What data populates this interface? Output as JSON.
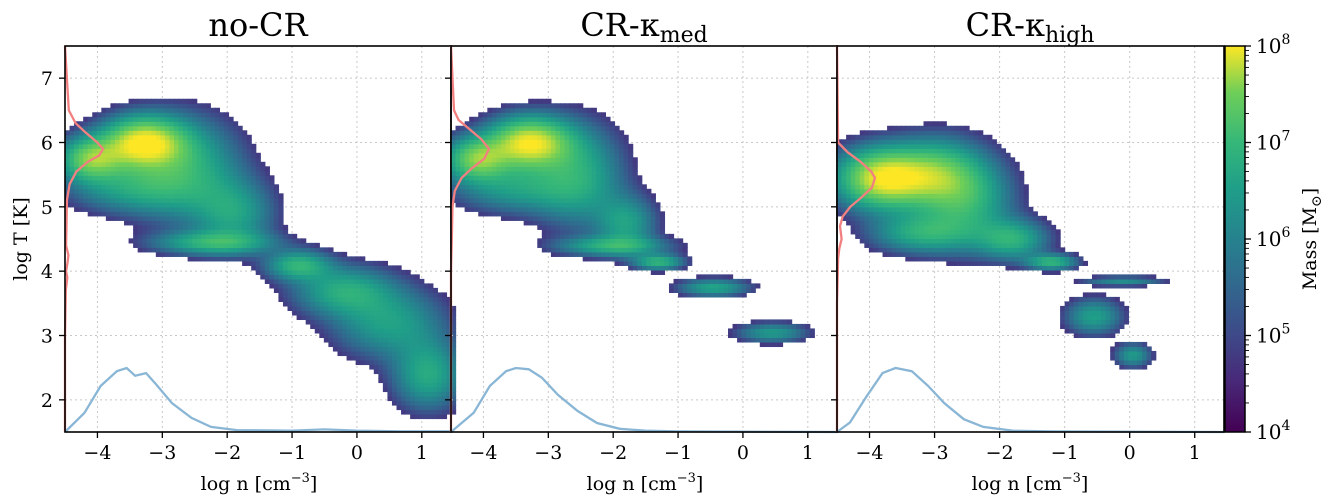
{
  "chart_data": {
    "type": "heatmap",
    "panels": [
      {
        "title": "no-CR",
        "title_sub": ""
      },
      {
        "title": "CR-κ",
        "title_sub": "med"
      },
      {
        "title": "CR-κ",
        "title_sub": "high"
      }
    ],
    "xlabel": "log n [cm",
    "xlabel_sup": "−3",
    "xlabel_end": "]",
    "ylabel": "log T [K]",
    "xlim": [
      -4.5,
      1.45
    ],
    "ylim": [
      1.5,
      7.5
    ],
    "x_ticks": [
      -4,
      -3,
      -2,
      -1,
      0,
      1
    ],
    "x_tick_labels": [
      "−4",
      "−3",
      "−2",
      "−1",
      "0",
      "1"
    ],
    "y_ticks": [
      2,
      3,
      4,
      5,
      6,
      7
    ],
    "y_tick_labels": [
      "2",
      "3",
      "4",
      "5",
      "6",
      "7"
    ],
    "grid": true,
    "colorbar": {
      "label": "Mass [M",
      "label_sub": "⊙",
      "label_end": "]",
      "scale": "log",
      "range": [
        10000,
        100000000
      ],
      "ticks": [
        {
          "base": "10",
          "exp": "4"
        },
        {
          "base": "10",
          "exp": "5"
        },
        {
          "base": "10",
          "exp": "6"
        },
        {
          "base": "10",
          "exp": "7"
        },
        {
          "base": "10",
          "exp": "8"
        }
      ],
      "colormap": "viridis"
    },
    "temperature_profile_color": "#f28080",
    "density_profile_color": "#8ab6d6",
    "temperature_profiles": [
      [
        [
          7.5,
          0
        ],
        [
          6.5,
          0.1
        ],
        [
          6.3,
          0.28
        ],
        [
          6.15,
          0.55
        ],
        [
          6.0,
          0.85
        ],
        [
          5.9,
          1.0
        ],
        [
          5.8,
          0.9
        ],
        [
          5.7,
          0.6
        ],
        [
          5.55,
          0.3
        ],
        [
          5.35,
          0.12
        ],
        [
          5.1,
          0.05
        ],
        [
          4.7,
          0.04
        ],
        [
          4.4,
          0.03
        ],
        [
          4.25,
          0.09
        ],
        [
          4.15,
          0.07
        ],
        [
          4.0,
          0.03
        ],
        [
          3.9,
          0.06
        ],
        [
          3.7,
          0.02
        ],
        [
          3.0,
          0
        ],
        [
          1.5,
          0
        ]
      ],
      [
        [
          7.5,
          0
        ],
        [
          6.5,
          0.08
        ],
        [
          6.35,
          0.2
        ],
        [
          6.2,
          0.5
        ],
        [
          6.05,
          0.8
        ],
        [
          5.9,
          1.0
        ],
        [
          5.75,
          0.88
        ],
        [
          5.6,
          0.55
        ],
        [
          5.45,
          0.28
        ],
        [
          5.25,
          0.1
        ],
        [
          5.0,
          0.04
        ],
        [
          4.5,
          0.02
        ],
        [
          4.0,
          0
        ],
        [
          1.5,
          0
        ]
      ],
      [
        [
          7.5,
          0
        ],
        [
          6.0,
          0.03
        ],
        [
          5.85,
          0.28
        ],
        [
          5.7,
          0.62
        ],
        [
          5.55,
          0.9
        ],
        [
          5.45,
          1.0
        ],
        [
          5.3,
          0.92
        ],
        [
          5.15,
          0.65
        ],
        [
          5.0,
          0.35
        ],
        [
          4.85,
          0.15
        ],
        [
          4.7,
          0.08
        ],
        [
          4.5,
          0.12
        ],
        [
          4.35,
          0.06
        ],
        [
          4.2,
          0.03
        ],
        [
          3.5,
          0
        ],
        [
          1.5,
          0
        ]
      ]
    ],
    "density_profiles": [
      [
        [
          -4.5,
          0
        ],
        [
          -4.2,
          0.3
        ],
        [
          -3.95,
          0.72
        ],
        [
          -3.7,
          0.95
        ],
        [
          -3.55,
          1.0
        ],
        [
          -3.42,
          0.88
        ],
        [
          -3.25,
          0.92
        ],
        [
          -3.1,
          0.75
        ],
        [
          -2.85,
          0.45
        ],
        [
          -2.55,
          0.22
        ],
        [
          -2.25,
          0.08
        ],
        [
          -1.85,
          0.03
        ],
        [
          -1.0,
          0.02
        ],
        [
          -0.5,
          0.04
        ],
        [
          0.0,
          0.02
        ],
        [
          0.7,
          0.01
        ],
        [
          1.45,
          0.01
        ]
      ],
      [
        [
          -4.5,
          0
        ],
        [
          -4.15,
          0.3
        ],
        [
          -3.9,
          0.72
        ],
        [
          -3.65,
          0.95
        ],
        [
          -3.5,
          1.0
        ],
        [
          -3.3,
          0.98
        ],
        [
          -3.1,
          0.85
        ],
        [
          -2.85,
          0.58
        ],
        [
          -2.55,
          0.33
        ],
        [
          -2.25,
          0.14
        ],
        [
          -1.9,
          0.05
        ],
        [
          -1.5,
          0.02
        ],
        [
          -1.0,
          0.01
        ],
        [
          1.45,
          0
        ]
      ],
      [
        [
          -4.5,
          0
        ],
        [
          -4.3,
          0.15
        ],
        [
          -4.05,
          0.55
        ],
        [
          -3.8,
          0.92
        ],
        [
          -3.6,
          1.0
        ],
        [
          -3.35,
          0.95
        ],
        [
          -3.1,
          0.72
        ],
        [
          -2.85,
          0.45
        ],
        [
          -2.55,
          0.2
        ],
        [
          -2.25,
          0.08
        ],
        [
          -1.8,
          0.02
        ],
        [
          -1.2,
          0.01
        ],
        [
          1.45,
          0
        ]
      ]
    ],
    "phase_regions": [
      {
        "blobs": [
          {
            "x": -3.3,
            "y": 6.0,
            "sx": 0.42,
            "sy": 0.26,
            "w": 3.4
          },
          {
            "x": -4.1,
            "y": 5.75,
            "sx": 0.32,
            "sy": 0.22,
            "w": 2.4
          },
          {
            "x": -2.65,
            "y": 5.6,
            "sx": 0.55,
            "sy": 0.5,
            "w": 1.5
          },
          {
            "x": -1.9,
            "y": 4.9,
            "sx": 0.4,
            "sy": 0.35,
            "w": 1.2
          },
          {
            "x": -2.2,
            "y": 4.45,
            "sx": 0.6,
            "sy": 0.12,
            "w": 1.5
          },
          {
            "x": -0.9,
            "y": 4.1,
            "sx": 0.32,
            "sy": 0.15,
            "w": 1.6
          },
          {
            "x": -0.2,
            "y": 3.7,
            "sx": 0.5,
            "sy": 0.25,
            "w": 1.4
          },
          {
            "x": 0.5,
            "y": 3.2,
            "sx": 0.55,
            "sy": 0.35,
            "w": 1.2
          },
          {
            "x": 1.1,
            "y": 2.4,
            "sx": 0.35,
            "sy": 0.35,
            "w": 1.4
          },
          {
            "x": -3.5,
            "y": 5.3,
            "sx": 0.6,
            "sy": 0.25,
            "w": 1.1
          }
        ]
      },
      {
        "blobs": [
          {
            "x": -3.3,
            "y": 6.0,
            "sx": 0.42,
            "sy": 0.26,
            "w": 3.4
          },
          {
            "x": -4.1,
            "y": 5.75,
            "sx": 0.32,
            "sy": 0.22,
            "w": 2.4
          },
          {
            "x": -2.55,
            "y": 5.5,
            "sx": 0.45,
            "sy": 0.5,
            "w": 1.4
          },
          {
            "x": -1.8,
            "y": 4.75,
            "sx": 0.3,
            "sy": 0.28,
            "w": 1.2
          },
          {
            "x": -2.0,
            "y": 4.4,
            "sx": 0.55,
            "sy": 0.1,
            "w": 1.4
          },
          {
            "x": -1.3,
            "y": 4.15,
            "sx": 0.25,
            "sy": 0.08,
            "w": 1.6
          },
          {
            "x": -0.45,
            "y": 3.75,
            "sx": 0.35,
            "sy": 0.09,
            "w": 1.3
          },
          {
            "x": 0.45,
            "y": 3.05,
            "sx": 0.35,
            "sy": 0.1,
            "w": 1.1
          },
          {
            "x": -3.5,
            "y": 5.3,
            "sx": 0.6,
            "sy": 0.25,
            "w": 1.1
          }
        ]
      },
      {
        "blobs": [
          {
            "x": -3.8,
            "y": 5.45,
            "sx": 0.45,
            "sy": 0.3,
            "w": 3.4
          },
          {
            "x": -3.0,
            "y": 5.5,
            "sx": 0.45,
            "sy": 0.35,
            "w": 2.0
          },
          {
            "x": -2.5,
            "y": 5.1,
            "sx": 0.45,
            "sy": 0.45,
            "w": 1.5
          },
          {
            "x": -1.8,
            "y": 4.5,
            "sx": 0.35,
            "sy": 0.2,
            "w": 1.5
          },
          {
            "x": -3.2,
            "y": 4.6,
            "sx": 0.5,
            "sy": 0.2,
            "w": 1.4
          },
          {
            "x": -1.2,
            "y": 4.15,
            "sx": 0.25,
            "sy": 0.08,
            "w": 1.6
          },
          {
            "x": -0.55,
            "y": 3.3,
            "sx": 0.28,
            "sy": 0.18,
            "w": 1.2
          },
          {
            "x": 0.05,
            "y": 2.7,
            "sx": 0.18,
            "sy": 0.12,
            "w": 1.1
          },
          {
            "x": -0.1,
            "y": 3.85,
            "sx": 0.4,
            "sy": 0.05,
            "w": 0.9
          }
        ]
      }
    ]
  }
}
